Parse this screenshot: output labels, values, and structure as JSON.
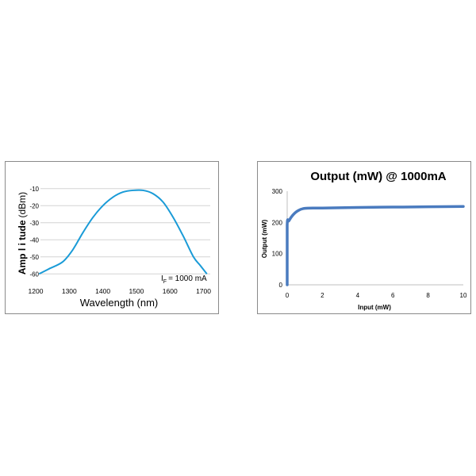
{
  "chart_data": [
    {
      "type": "line",
      "title": "",
      "xlabel": "Wavelength (nm)",
      "ylabel_bold": "Amp l i tude",
      "ylabel_unit": "(dBm)",
      "xlim": [
        1200,
        1720
      ],
      "ylim": [
        -65,
        2
      ],
      "xticks": [
        "1200",
        "1300",
        "1400",
        "1500",
        "1600",
        "1700"
      ],
      "yticks": [
        "-10",
        "-20",
        "-30",
        "-40",
        "-50",
        "-60"
      ],
      "annotation_prefix": "I",
      "annotation_sub": "F",
      "annotation_value": "= 1000 mA",
      "grid": true,
      "line_color": "#1a9bd7",
      "series": [
        {
          "x": [
            1210,
            1240,
            1280,
            1310,
            1340,
            1370,
            1400,
            1430,
            1460,
            1490,
            1520,
            1550,
            1580,
            1610,
            1640,
            1670,
            1690,
            1710
          ],
          "y": [
            -60,
            -57,
            -53,
            -46,
            -36,
            -27,
            -20,
            -15,
            -12,
            -11,
            -11,
            -13,
            -18,
            -27,
            -38,
            -50,
            -55,
            -60
          ]
        }
      ]
    },
    {
      "type": "line",
      "title": "Output (mW) @ 1000mA",
      "xlabel": "Input (mW)",
      "ylabel": "Output (mW)",
      "xlim": [
        0,
        10
      ],
      "ylim": [
        0,
        300
      ],
      "xticks": [
        "0",
        "2",
        "4",
        "6",
        "8",
        "10"
      ],
      "yticks": [
        "0",
        "100",
        "200",
        "300"
      ],
      "grid": false,
      "line_color": "#4a7bbf",
      "series": [
        {
          "x": [
            0,
            0,
            0.1,
            0.3,
            0.6,
            1.0,
            2,
            4,
            6,
            8,
            10
          ],
          "y": [
            0,
            190,
            205,
            222,
            237,
            245,
            246,
            248,
            249,
            250,
            251
          ]
        }
      ]
    }
  ]
}
